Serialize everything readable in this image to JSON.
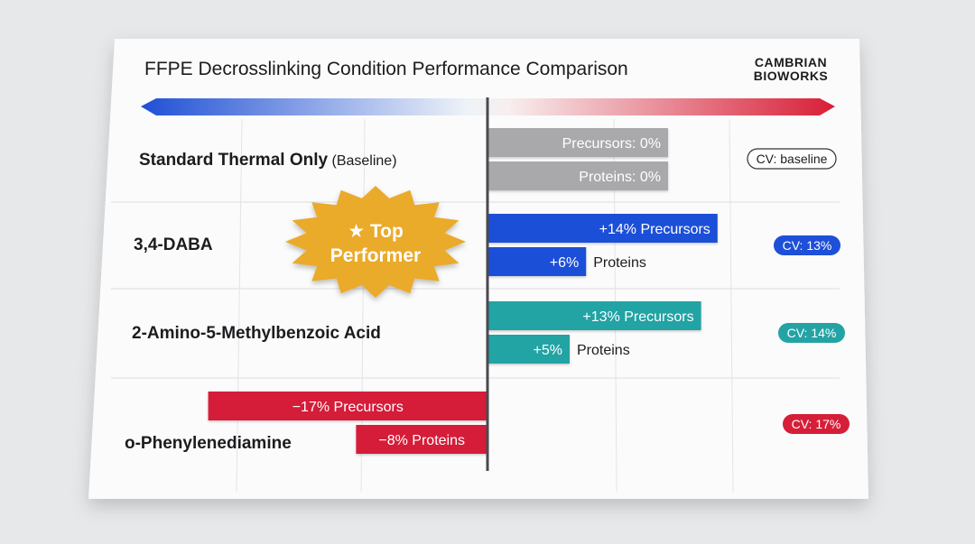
{
  "title": "FFPE Decrosslinking Condition Performance Comparison",
  "brand": {
    "line1": "CAMBRIAN",
    "line2": "BIOWORKS"
  },
  "badge": {
    "line1": "★ Top",
    "line2": "Performer"
  },
  "colors": {
    "baseline": "#a9a9ab",
    "daba": "#1d4fd8",
    "amb": "#24a3a4",
    "opd": "#d51f38",
    "scale_negative": "#1f4fd6",
    "scale_positive": "#d81e36",
    "badge": "#eaaa2a"
  },
  "chart_data": {
    "type": "bar",
    "orientation": "horizontal-diverging",
    "unit": "%",
    "categories": [
      "Standard Thermal Only",
      "3,4-DABA",
      "2-Amino-5-Methylbenzoic Acid",
      "o-Phenylenediamine"
    ],
    "category_notes": [
      "(Baseline)",
      "",
      "",
      ""
    ],
    "series": [
      {
        "name": "Precursors",
        "values": [
          0,
          14,
          13,
          -17
        ]
      },
      {
        "name": "Proteins",
        "values": [
          0,
          6,
          5,
          -8
        ]
      }
    ],
    "bar_labels": [
      [
        "Precursors: 0%",
        "Proteins: 0%"
      ],
      [
        "+14% Precursors",
        "+6%"
      ],
      [
        "+13% Precursors",
        "+5%"
      ],
      [
        "−17% Precursors",
        "−8% Proteins"
      ]
    ],
    "outside_labels": [
      [
        "",
        ""
      ],
      [
        "",
        "Proteins"
      ],
      [
        "",
        "Proteins"
      ],
      [
        "",
        ""
      ]
    ],
    "cv_labels": [
      "CV: baseline",
      "CV: 13%",
      "CV: 14%",
      "CV: 17%"
    ],
    "highlight": "3,4-DABA",
    "grid": true
  }
}
